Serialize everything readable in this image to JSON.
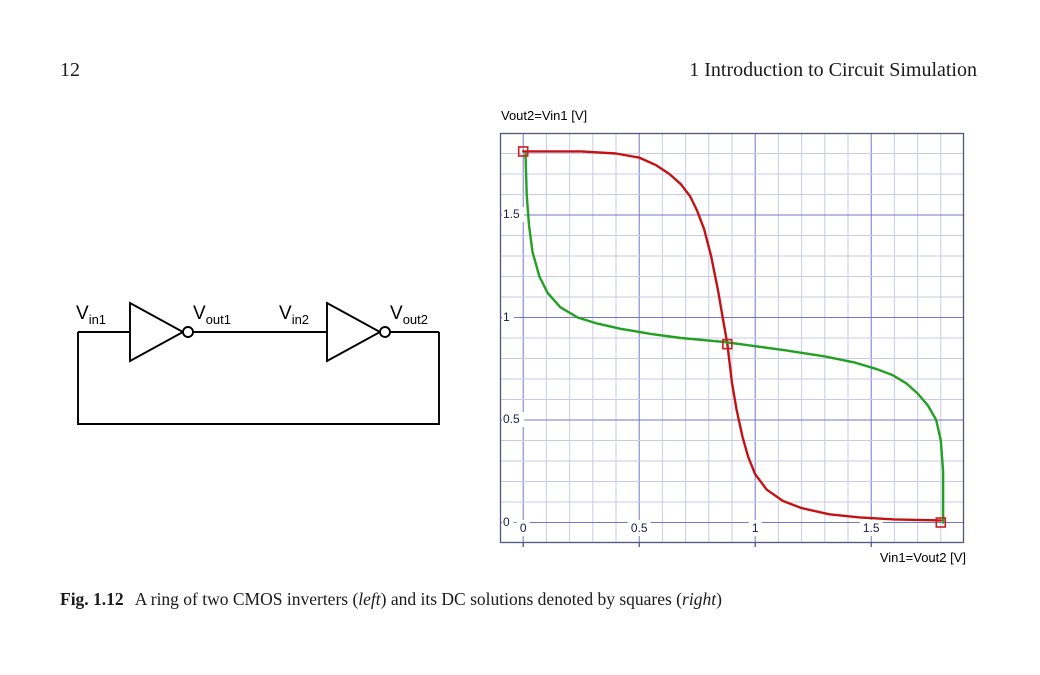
{
  "page": {
    "number": "12",
    "running_header": "1 Introduction to Circuit Simulation"
  },
  "circuit": {
    "description": "ring of two CMOS inverters",
    "labels": [
      {
        "main": "V",
        "sub": "in1"
      },
      {
        "main": "V",
        "sub": "out1"
      },
      {
        "main": "V",
        "sub": "in2"
      },
      {
        "main": "V",
        "sub": "out2"
      }
    ]
  },
  "chart_data": {
    "type": "line",
    "ylabel": "Vout2=Vin1 [V]",
    "xlabel": "Vin1=Vout2 [V]",
    "xlim": [
      -0.1,
      1.9
    ],
    "ylim": [
      -0.1,
      1.9
    ],
    "major_step": 0.5,
    "minor_step": 0.1,
    "grid": {
      "major_color": "#7476c6",
      "minor_color": "#c9caea",
      "frame_color": "#53537e"
    },
    "xticks": {
      "values": [
        0,
        0.5,
        1,
        1.5
      ],
      "labels": [
        "0",
        "0.5",
        "1",
        "1.5"
      ]
    },
    "yticks": {
      "values": [
        0,
        0.5,
        1,
        1.5
      ],
      "labels": [
        "0",
        "0.5",
        "1",
        "1.5"
      ]
    },
    "series": [
      {
        "name": "inverter cascade transfer curve Vout2 vs Vin1",
        "color": "#c41212",
        "points": [
          [
            0,
            1.81
          ],
          [
            0.1,
            1.81
          ],
          [
            0.25,
            1.81
          ],
          [
            0.4,
            1.8
          ],
          [
            0.5,
            1.78
          ],
          [
            0.57,
            1.745
          ],
          [
            0.63,
            1.7
          ],
          [
            0.68,
            1.65
          ],
          [
            0.72,
            1.59
          ],
          [
            0.75,
            1.52
          ],
          [
            0.78,
            1.43
          ],
          [
            0.81,
            1.3
          ],
          [
            0.84,
            1.13
          ],
          [
            0.86,
            1.0
          ],
          [
            0.88,
            0.87
          ],
          [
            0.9,
            0.68
          ],
          [
            0.92,
            0.55
          ],
          [
            0.945,
            0.42
          ],
          [
            0.97,
            0.32
          ],
          [
            1.0,
            0.235
          ],
          [
            1.05,
            0.16
          ],
          [
            1.12,
            0.105
          ],
          [
            1.2,
            0.07
          ],
          [
            1.32,
            0.04
          ],
          [
            1.45,
            0.025
          ],
          [
            1.6,
            0.015
          ],
          [
            1.8,
            0.01
          ]
        ]
      },
      {
        "name": "mirrored transfer curve Vin1 vs Vout2",
        "color": "#22a022",
        "points": [
          [
            0.01,
            1.8
          ],
          [
            0.015,
            1.6
          ],
          [
            0.025,
            1.45
          ],
          [
            0.04,
            1.32
          ],
          [
            0.07,
            1.2
          ],
          [
            0.105,
            1.12
          ],
          [
            0.16,
            1.05
          ],
          [
            0.235,
            1.0
          ],
          [
            0.32,
            0.97
          ],
          [
            0.42,
            0.945
          ],
          [
            0.55,
            0.92
          ],
          [
            0.68,
            0.9
          ],
          [
            0.87,
            0.88
          ],
          [
            1.0,
            0.86
          ],
          [
            1.13,
            0.84
          ],
          [
            1.3,
            0.81
          ],
          [
            1.43,
            0.78
          ],
          [
            1.52,
            0.75
          ],
          [
            1.59,
            0.72
          ],
          [
            1.65,
            0.68
          ],
          [
            1.7,
            0.63
          ],
          [
            1.745,
            0.57
          ],
          [
            1.78,
            0.5
          ],
          [
            1.8,
            0.4
          ],
          [
            1.81,
            0.25
          ],
          [
            1.81,
            0.1
          ],
          [
            1.81,
            0
          ]
        ]
      }
    ],
    "dc_solutions": {
      "marker": "square",
      "color": "#c42222",
      "points": [
        [
          0,
          1.81
        ],
        [
          0.88,
          0.87
        ],
        [
          1.8,
          0
        ]
      ]
    }
  },
  "caption": {
    "tag": "Fig. 1.12",
    "part1": "A ring of two CMOS inverters (",
    "italic1": "left",
    "part2": ") and its DC solutions denoted by squares (",
    "italic2": "right",
    "part3": ")"
  }
}
